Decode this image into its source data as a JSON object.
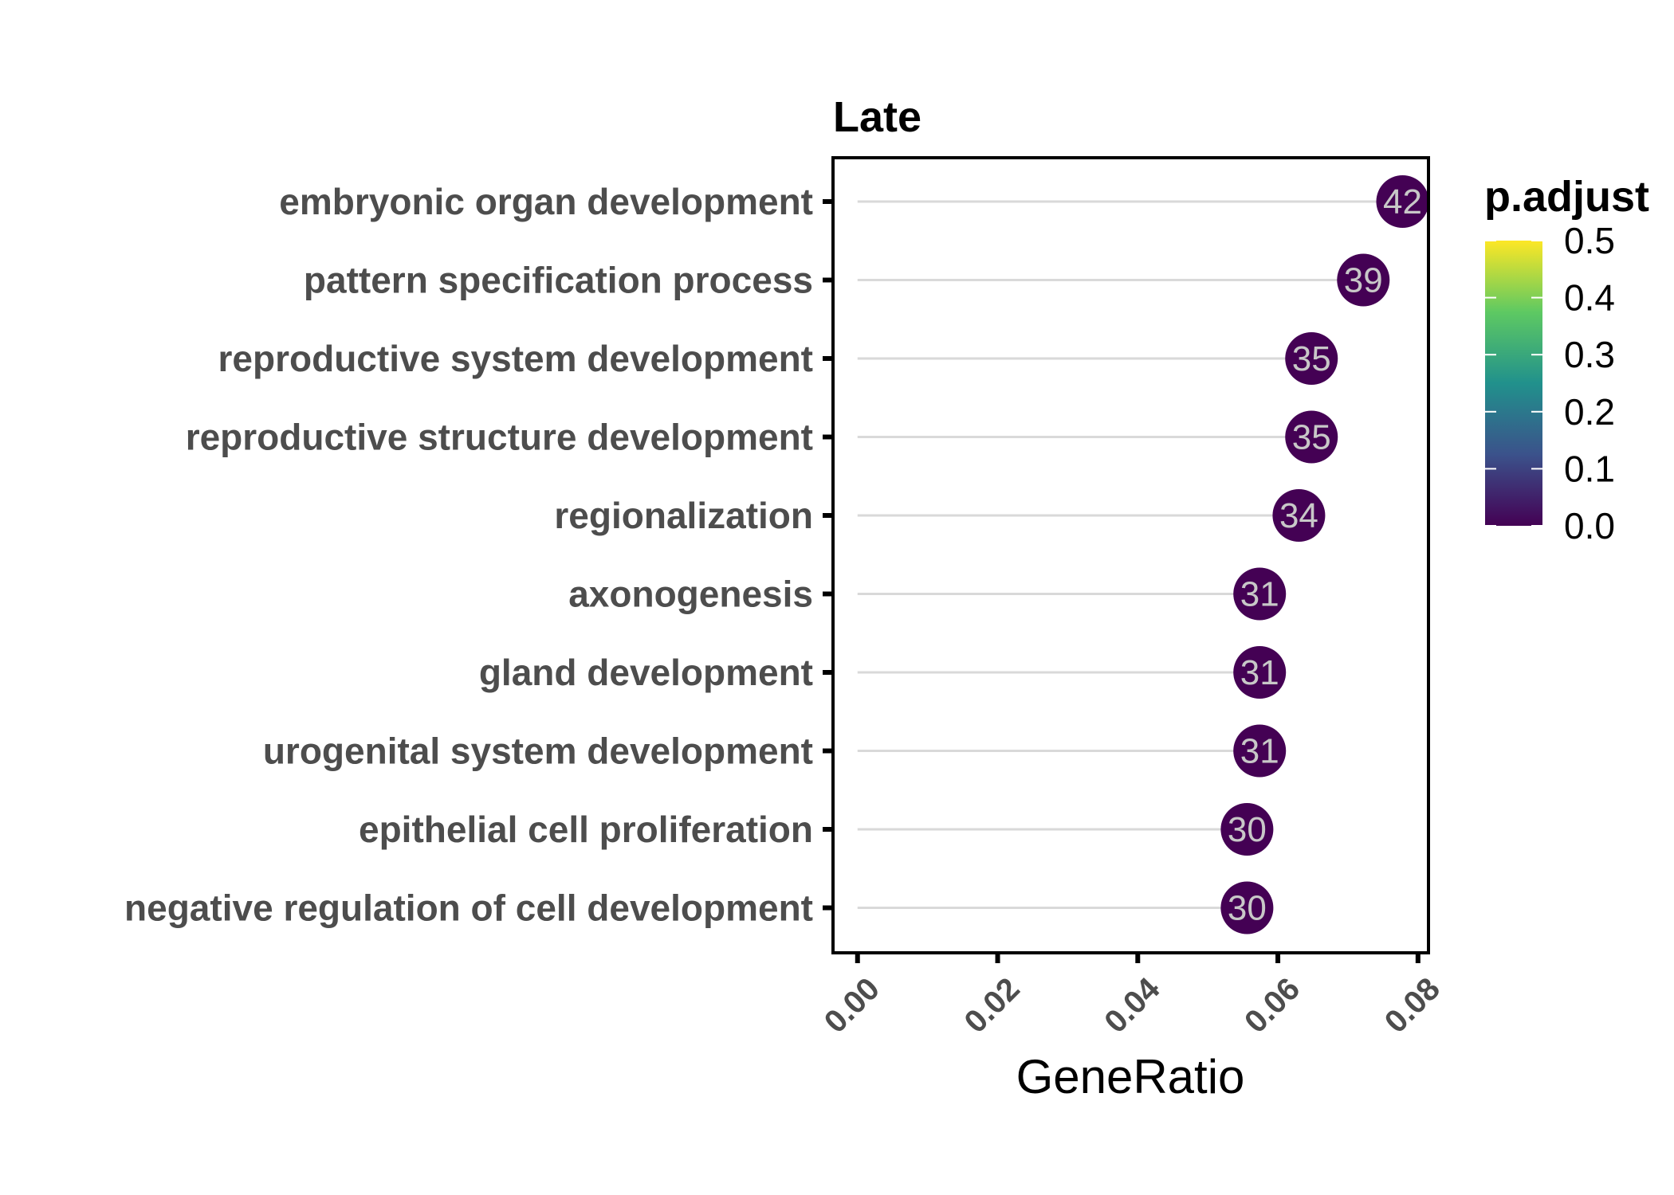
{
  "chart_data": {
    "type": "scatter",
    "facet_title": "Late",
    "xlabel": "GeneRatio",
    "ylabel": "",
    "xlim": [
      -0.0035,
      0.0815
    ],
    "xticks": [
      "0.00",
      "0.02",
      "0.04",
      "0.06",
      "0.08"
    ],
    "xtick_values": [
      0.0,
      0.02,
      0.04,
      0.06,
      0.08
    ],
    "categories": [
      "embryonic organ development",
      "pattern specification process",
      "reproductive system development",
      "reproductive structure development",
      "regionalization",
      "axonogenesis",
      "gland development",
      "urogenital system development",
      "epithelial cell proliferation",
      "negative regulation of cell development"
    ],
    "values": [
      0.0778,
      0.0722,
      0.0648,
      0.0648,
      0.063,
      0.0574,
      0.0574,
      0.0574,
      0.0556,
      0.0556
    ],
    "counts": [
      42,
      39,
      35,
      35,
      34,
      31,
      31,
      31,
      30,
      30
    ],
    "p_adjust": [
      0.0001,
      0.0001,
      0.0001,
      0.0001,
      0.0001,
      0.0001,
      0.0001,
      0.0001,
      0.0001,
      0.0001
    ],
    "legend": {
      "title": "p.adjust",
      "ticks": [
        "0.5",
        "0.4",
        "0.3",
        "0.2",
        "0.1",
        "0.0"
      ],
      "tick_values": [
        0.5,
        0.4,
        0.3,
        0.2,
        0.1,
        0.0
      ],
      "range": [
        0.0,
        0.5
      ],
      "colormap": "viridis",
      "position": "right"
    },
    "colors": {
      "point": "#440154",
      "segment": "#d9d9d9",
      "viridis": [
        "#440154",
        "#3b528b",
        "#21918c",
        "#5ec962",
        "#fde725"
      ]
    },
    "grid": false
  }
}
